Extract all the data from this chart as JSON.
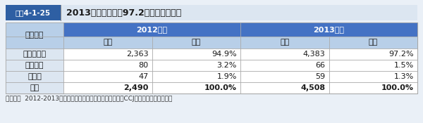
{
  "title_box_label": "図表4-1-25",
  "title_text": "2013年度の相談は97.2％が電子商取引",
  "col_groups": [
    "2012年度",
    "2013年度"
  ],
  "col_headers": [
    "件数",
    "割合",
    "件数",
    "割合"
  ],
  "row_label_header": "取引類型",
  "row_headers": [
    "電子商取引",
    "現地購入",
    "その他",
    "合計"
  ],
  "data": [
    [
      "2,363",
      "94.9%",
      "4,383",
      "97.2%"
    ],
    [
      "80",
      "3.2%",
      "66",
      "1.5%"
    ],
    [
      "47",
      "1.9%",
      "59",
      "1.3%"
    ],
    [
      "2,490",
      "100.0%",
      "4,508",
      "100.0%"
    ]
  ],
  "note": "（備考）  2012-2013年度に消費者庁越境消費者センター（CCJ）が受け付けた相談。",
  "header_bg_dark": "#4472c4",
  "header_bg_light": "#b8cfe8",
  "row_header_bg": "#dce6f1",
  "title_label_bg": "#2e5fa3",
  "title_bar_bg": "#dce6f1",
  "outer_bg": "#eaf0f7",
  "table_bg": "#ffffff",
  "bold_rows": [
    3
  ],
  "alt_row_bg": "#f2f2f2",
  "grid_color": "#aaaaaa",
  "title_label_color": "#ffffff",
  "title_text_color": "#1a1a1a"
}
